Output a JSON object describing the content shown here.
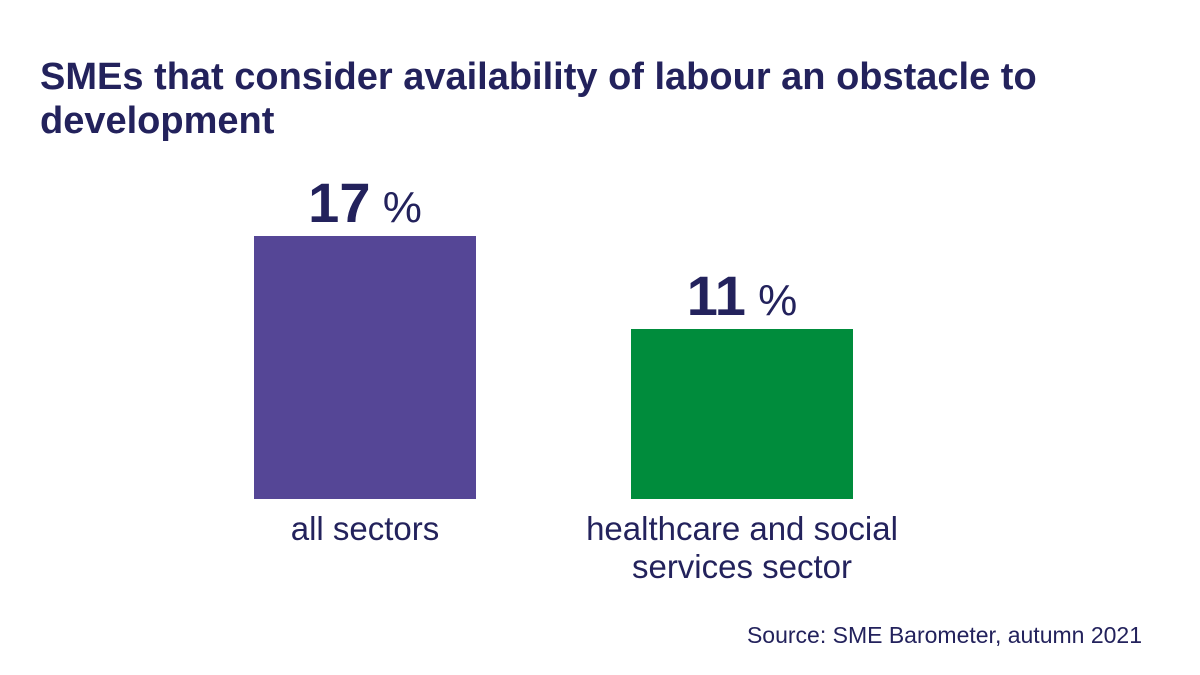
{
  "chart_data": {
    "type": "bar",
    "title": "SMEs that consider availability of labour an obstacle to development",
    "categories": [
      "all sectors",
      "healthcare and social services sector"
    ],
    "values": [
      17,
      11
    ],
    "unit": "%",
    "colors": [
      "#554696",
      "#008c3c"
    ],
    "source": "Source: SME Barometer, autumn 2021",
    "grid": false,
    "ylim": [
      0,
      17
    ]
  }
}
